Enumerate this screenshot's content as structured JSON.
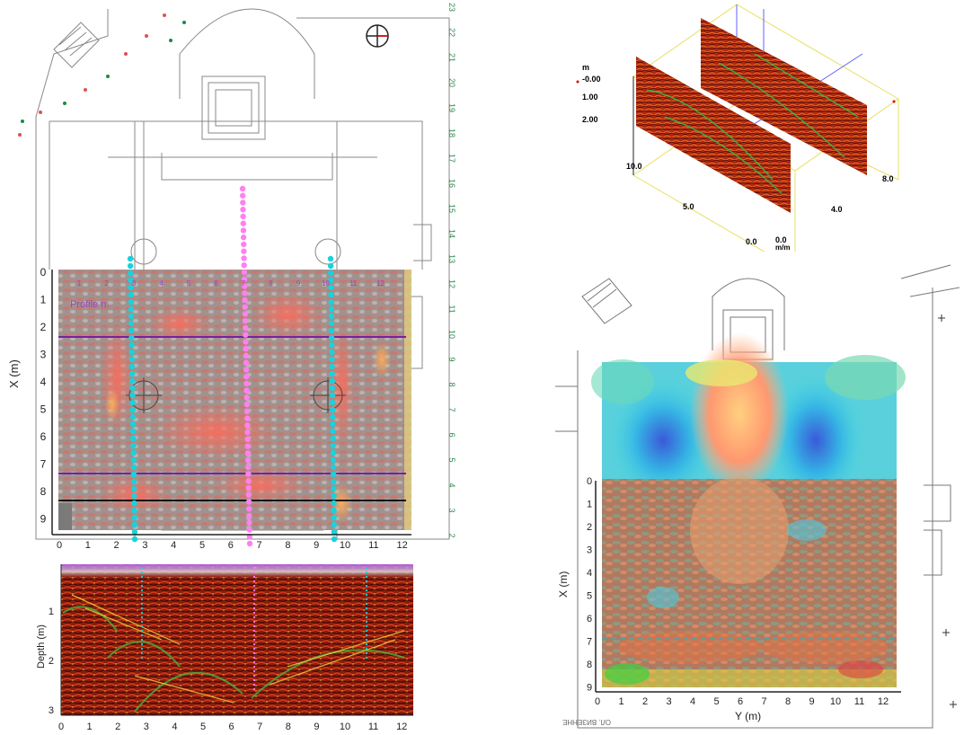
{
  "gpr_map": {
    "x_axis_label": "X (m)",
    "x_ticks": [
      "0",
      "1",
      "2",
      "3",
      "4",
      "5",
      "6",
      "7",
      "8",
      "9"
    ],
    "y_ticks": [
      "0",
      "1",
      "2",
      "3",
      "4",
      "5",
      "6",
      "7",
      "8",
      "9",
      "10",
      "11",
      "12"
    ],
    "profile_numbers": [
      "1",
      "2",
      "3",
      "4",
      "5",
      "6",
      "7",
      "8",
      "9",
      "10",
      "11",
      "12"
    ],
    "profile_label": "Profile n.",
    "green_station_labels": [
      "23",
      "22",
      "21",
      "20",
      "19",
      "18",
      "17",
      "16",
      "15",
      "14",
      "13",
      "12",
      "11",
      "10",
      "9",
      "8",
      "7",
      "6",
      "5",
      "4",
      "3",
      "2"
    ],
    "colors": {
      "cyan": "#19d2dc",
      "magenta": "#ff80f0",
      "purple": "#7a1fa0",
      "black": "#111111",
      "base": "#9a8e8c"
    }
  },
  "radargram": {
    "ylabel": "Depth (m)",
    "depth_ticks": [
      "1",
      "2",
      "3"
    ],
    "distance_ticks": [
      "0",
      "1",
      "2",
      "3",
      "4",
      "5",
      "6",
      "7",
      "8",
      "9",
      "10",
      "11",
      "12"
    ]
  },
  "block3d": {
    "axis_unit_top": "m",
    "depth_ticks": [
      "-0.00",
      "1.00",
      "2.00"
    ],
    "x_ticks": [
      "10.0",
      "5.0",
      "0.0"
    ],
    "y_ticks": [
      "0.0",
      "4.0",
      "8.0"
    ],
    "unit_bottom": "m/m"
  },
  "overlay_map": {
    "x_axis_label": "X (m)",
    "y_axis_label": "Y (m)",
    "x_ticks": [
      "0",
      "1",
      "2",
      "3",
      "4",
      "5",
      "6",
      "7",
      "8",
      "9"
    ],
    "y_ticks": [
      "0",
      "1",
      "2",
      "3",
      "4",
      "5",
      "6",
      "7",
      "8",
      "9",
      "10",
      "11",
      "12"
    ],
    "corner_text": "ОЛ. ВИЗЕННЕ"
  }
}
